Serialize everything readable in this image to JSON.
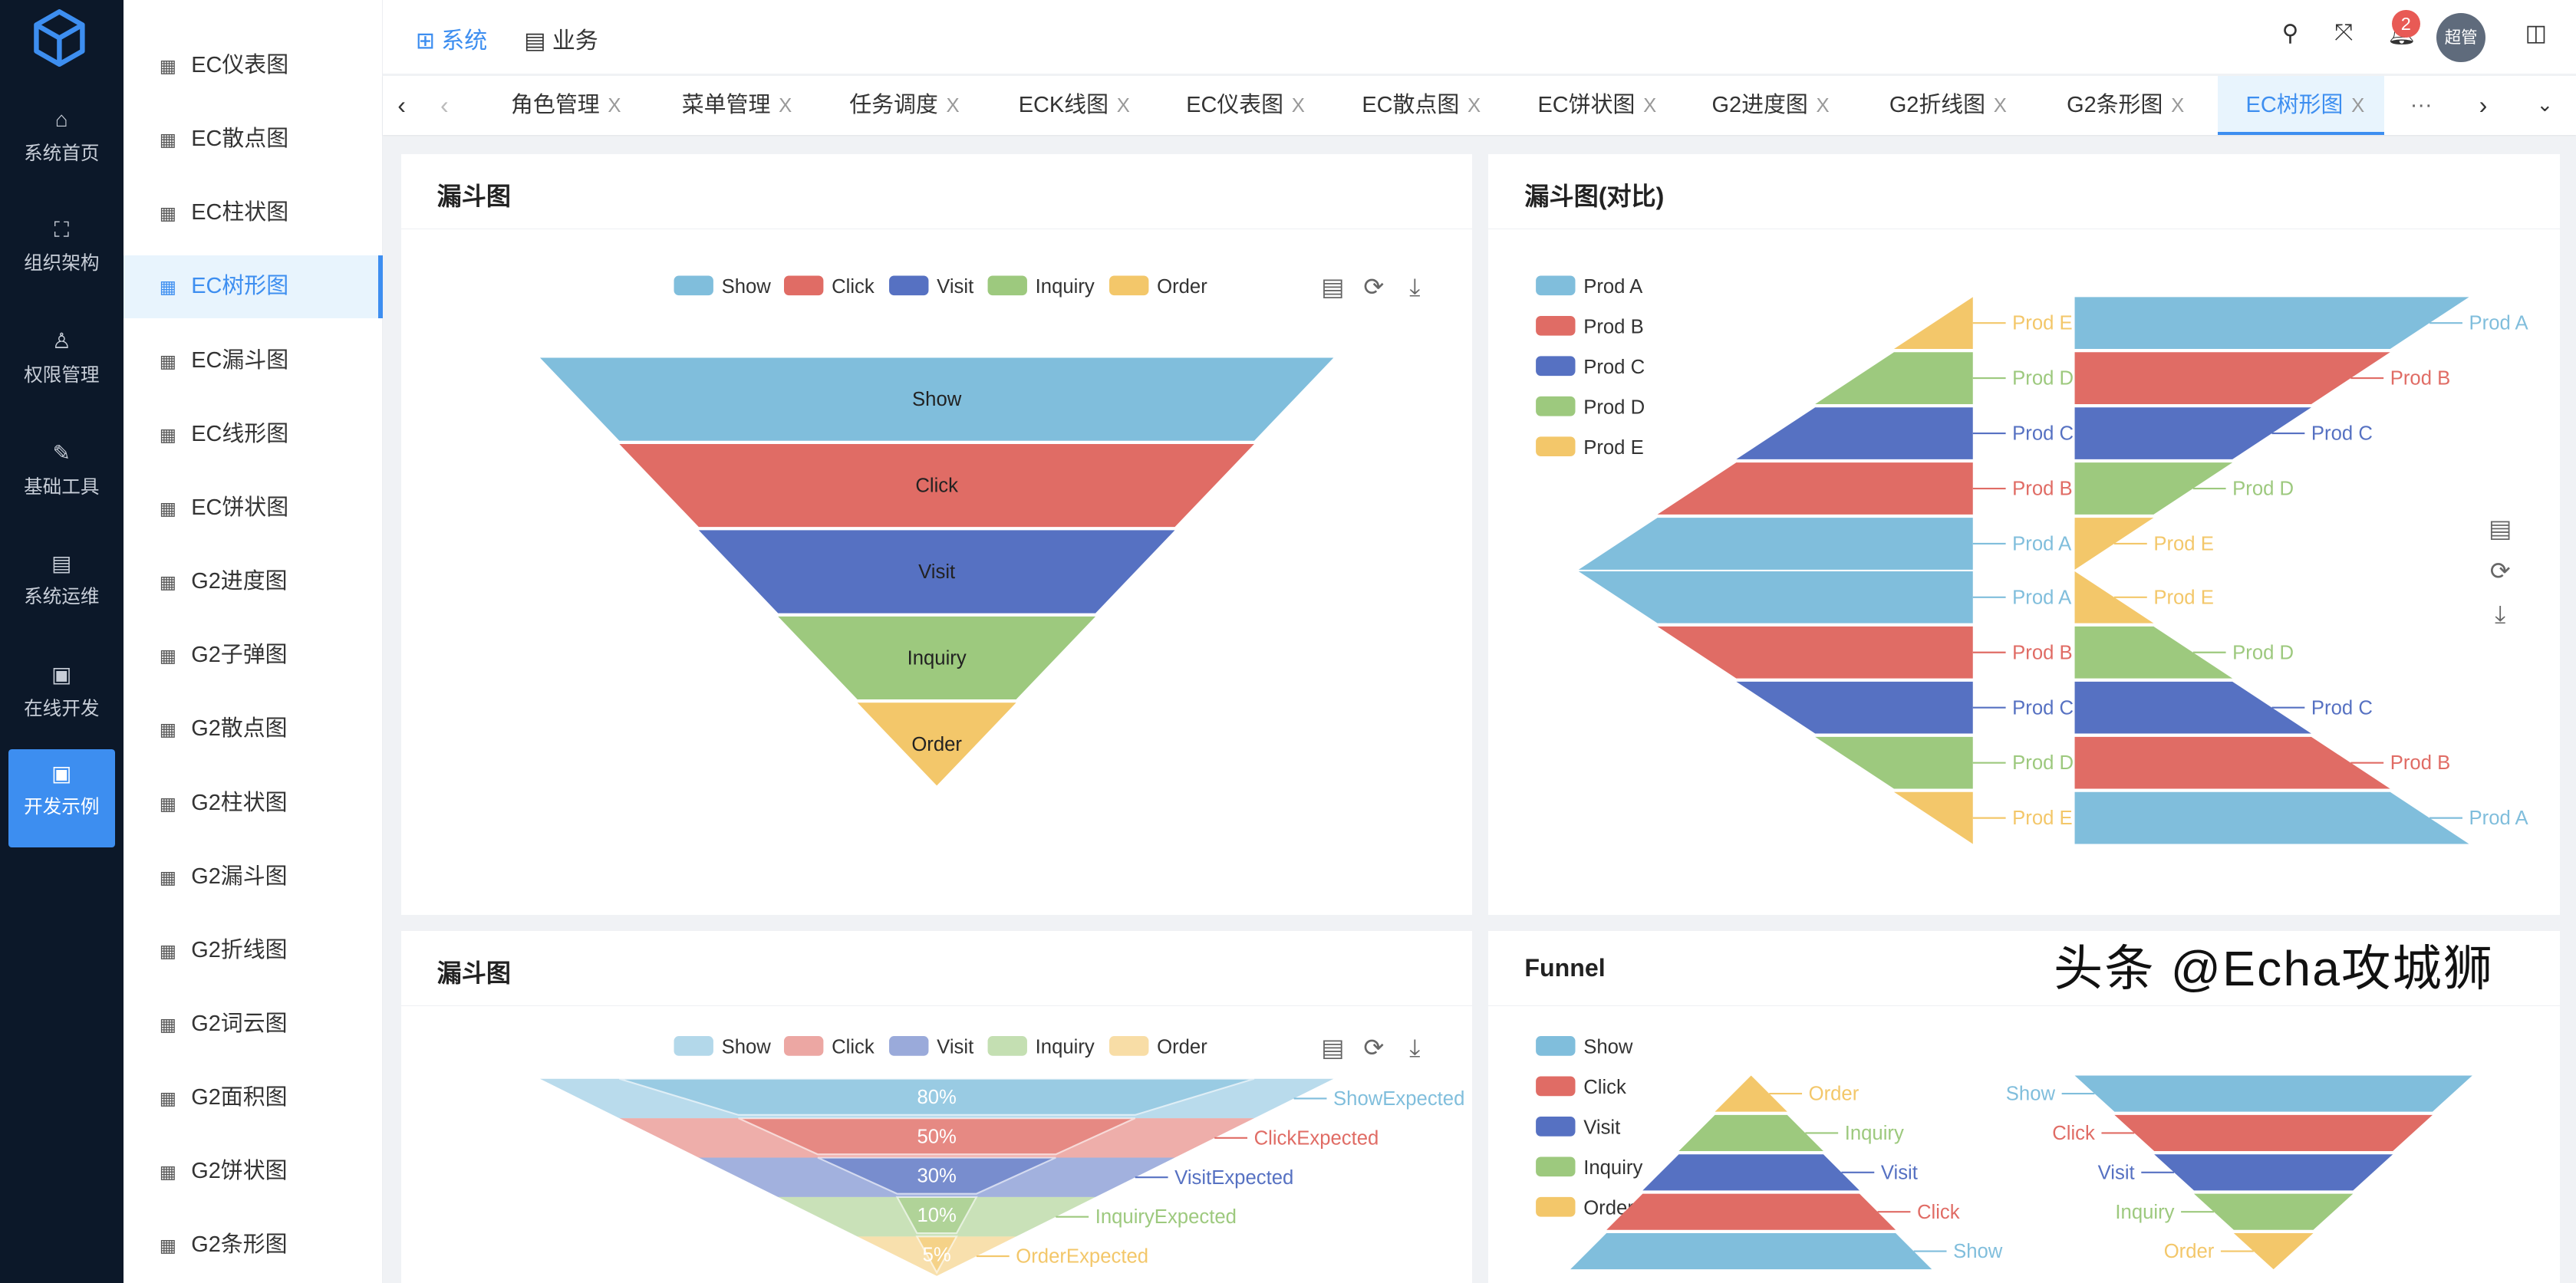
{
  "rail": {
    "items": [
      {
        "label": "系统首页",
        "icon": "home-icon"
      },
      {
        "label": "组织架构",
        "icon": "org-icon"
      },
      {
        "label": "权限管理",
        "icon": "user-key-icon"
      },
      {
        "label": "基础工具",
        "icon": "wrench-icon"
      },
      {
        "label": "系统运维",
        "icon": "server-icon"
      },
      {
        "label": "在线开发",
        "icon": "board-icon"
      },
      {
        "label": "开发示例",
        "icon": "board-icon",
        "active": true
      }
    ]
  },
  "menu": {
    "items": [
      "EC仪表图",
      "EC散点图",
      "EC柱状图",
      "EC树形图",
      "EC漏斗图",
      "EC线形图",
      "EC饼状图",
      "G2进度图",
      "G2子弹图",
      "G2散点图",
      "G2柱状图",
      "G2漏斗图",
      "G2折线图",
      "G2词云图",
      "G2面积图",
      "G2饼状图",
      "G2条形图"
    ],
    "active": "EC树形图"
  },
  "header": {
    "nav": [
      {
        "label": "系统",
        "active": true
      },
      {
        "label": "业务"
      }
    ],
    "badge": "2",
    "avatar": "超管"
  },
  "tabs": {
    "items": [
      "角色管理",
      "菜单管理",
      "任务调度",
      "ECK线图",
      "EC仪表图",
      "EC散点图",
      "EC饼状图",
      "G2进度图",
      "G2折线图",
      "G2条形图",
      "EC树形图"
    ],
    "active": "EC树形图",
    "close": "X",
    "more": "···"
  },
  "colors": {
    "accent": "#3d8ef0",
    "Show": "#80bedc",
    "Click": "#e06c65",
    "Visit": "#5671c2",
    "Inquiry": "#9dc97e",
    "Order": "#f3c76a",
    "Prod A": "#80bedc",
    "Prod B": "#e06c65",
    "Prod C": "#5671c2",
    "Prod D": "#9dc97e",
    "Prod E": "#f3c76a"
  },
  "chart_data": [
    {
      "type": "funnel",
      "title": "漏斗图",
      "legend": [
        "Show",
        "Click",
        "Visit",
        "Inquiry",
        "Order"
      ],
      "legend_position": "top",
      "data": [
        {
          "name": "Show",
          "value": 100
        },
        {
          "name": "Click",
          "value": 80
        },
        {
          "name": "Visit",
          "value": 60
        },
        {
          "name": "Inquiry",
          "value": 40
        },
        {
          "name": "Order",
          "value": 20
        }
      ],
      "sort": "descending",
      "label": "inside"
    },
    {
      "type": "funnel",
      "title": "漏斗图(对比)",
      "legend": [
        "Prod A",
        "Prod B",
        "Prod C",
        "Prod D",
        "Prod E"
      ],
      "legend_position": "left",
      "data": [
        {
          "name": "Prod A",
          "value": 100
        },
        {
          "name": "Prod B",
          "value": 80
        },
        {
          "name": "Prod C",
          "value": 60
        },
        {
          "name": "Prod D",
          "value": 40
        },
        {
          "name": "Prod E",
          "value": 20
        }
      ]
    },
    {
      "type": "funnel",
      "title": "漏斗图",
      "legend": [
        "Show",
        "Click",
        "Visit",
        "Inquiry",
        "Order"
      ],
      "legend_position": "top",
      "expected": [
        {
          "name": "Show",
          "value": 100
        },
        {
          "name": "Click",
          "value": 80
        },
        {
          "name": "Visit",
          "value": 60
        },
        {
          "name": "Inquiry",
          "value": 40
        },
        {
          "name": "Order",
          "value": 20
        }
      ],
      "actual": [
        {
          "name": "Show",
          "value": 80
        },
        {
          "name": "Click",
          "value": 50
        },
        {
          "name": "Visit",
          "value": 30
        },
        {
          "name": "Inquiry",
          "value": 10
        },
        {
          "name": "Order",
          "value": 5
        }
      ],
      "expected_suffix": "Expected",
      "actual_format": "%"
    },
    {
      "type": "funnel",
      "title": "Funnel",
      "legend": [
        "Show",
        "Click",
        "Visit",
        "Inquiry",
        "Order"
      ],
      "legend_position": "left",
      "data": [
        {
          "name": "Show",
          "value": 100
        },
        {
          "name": "Click",
          "value": 80
        },
        {
          "name": "Visit",
          "value": 60
        },
        {
          "name": "Inquiry",
          "value": 40
        },
        {
          "name": "Order",
          "value": 20
        }
      ]
    }
  ],
  "toolbox": [
    "data-view-icon",
    "restore-icon",
    "save-image-icon"
  ],
  "watermark": "头条 @Echa攻城狮"
}
